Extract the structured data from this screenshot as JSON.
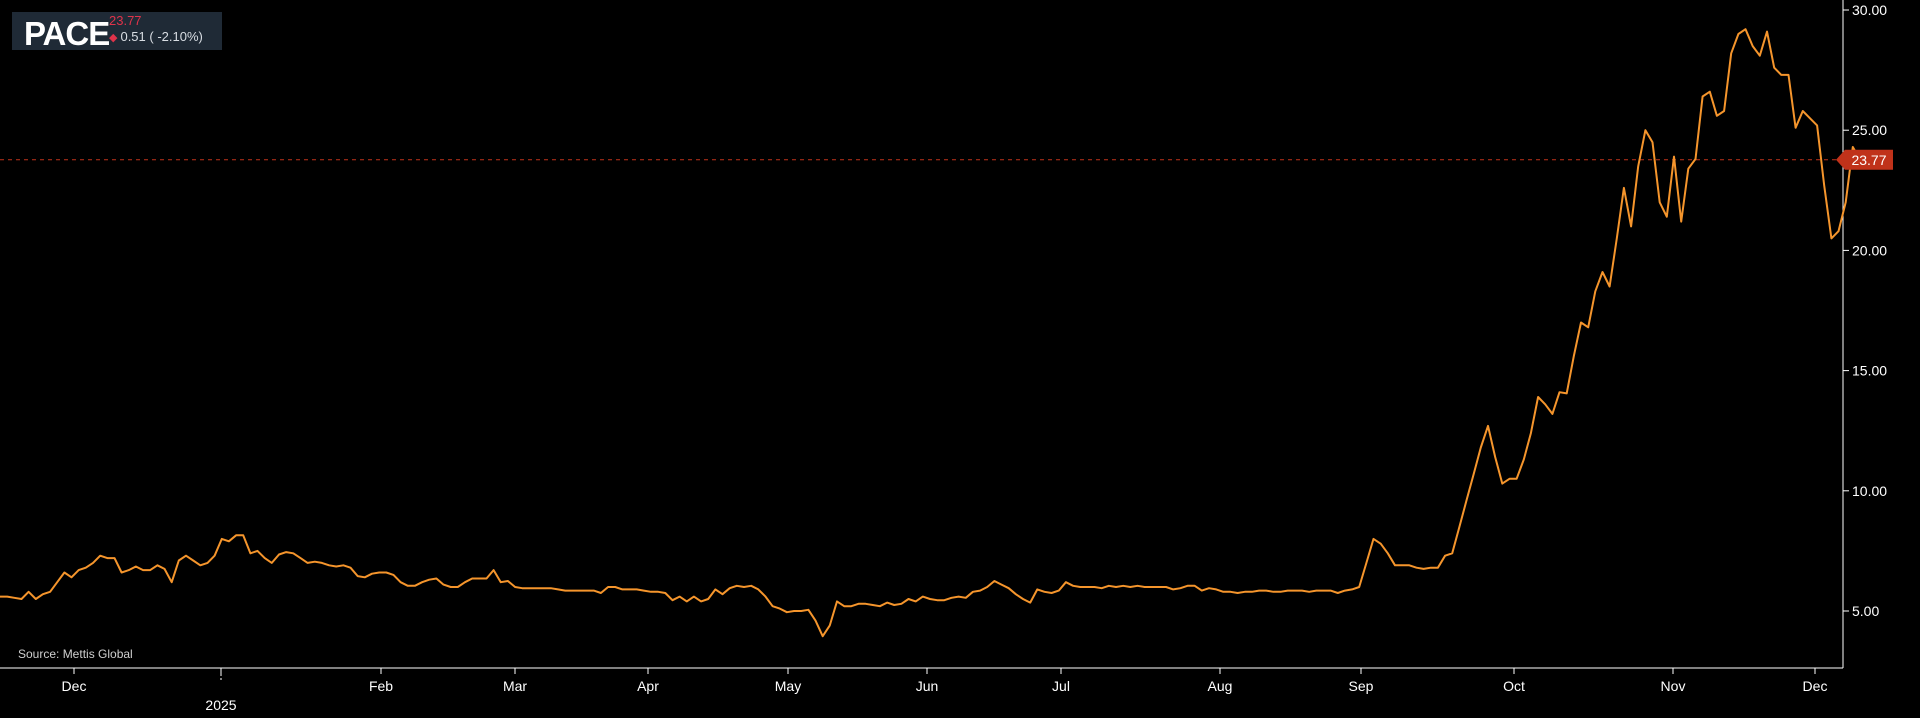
{
  "ticker": {
    "symbol": "PACE",
    "price": "23.77",
    "change": "0.51 ( -2.10%)",
    "direction_icon": "down-diamond-icon"
  },
  "source": "Source: Mettis Global",
  "colors": {
    "background": "#000000",
    "line": "#f5952c",
    "last_price": "#c0321a",
    "axis_text": "#ffffff",
    "price_down": "#e0334a",
    "ticker_box": "#1f2a36"
  },
  "chart_data": {
    "type": "line",
    "title": "",
    "xlabel": "",
    "ylabel": "",
    "x_ticks": [
      "Dec",
      "2025",
      "Feb",
      "Mar",
      "Apr",
      "May",
      "Jun",
      "Jul",
      "Aug",
      "Sep",
      "Oct",
      "Nov",
      "Dec"
    ],
    "y_ticks": [
      "5.00",
      "10.00",
      "15.00",
      "20.00",
      "25.00",
      "30.00"
    ],
    "ylim": [
      2.4,
      30.2
    ],
    "y_axis_side": "right",
    "grid": false,
    "last_price_label": "23.77",
    "last_price": 23.77,
    "series": [
      {
        "values": [
          5.6,
          5.6,
          5.55,
          5.5,
          5.8,
          5.5,
          5.7,
          5.8,
          6.2,
          6.6,
          6.4,
          6.7,
          6.8,
          7.0,
          7.3,
          7.2,
          7.2,
          6.6,
          6.7,
          6.85,
          6.7,
          6.7,
          6.9,
          6.75,
          6.2,
          7.1,
          7.3,
          7.1,
          6.9,
          7.0,
          7.3,
          8.0,
          7.9,
          8.15,
          8.15,
          7.4,
          7.5,
          7.2,
          7.0,
          7.35,
          7.45,
          7.4,
          7.2,
          7.0,
          7.05,
          7.0,
          6.9,
          6.85,
          6.9,
          6.8,
          6.45,
          6.4,
          6.55,
          6.6,
          6.6,
          6.5,
          6.2,
          6.05,
          6.05,
          6.2,
          6.3,
          6.35,
          6.1,
          6.0,
          6.0,
          6.2,
          6.35,
          6.35,
          6.35,
          6.7,
          6.2,
          6.25,
          6.0,
          5.95,
          5.95,
          5.95,
          5.95,
          5.95,
          5.9,
          5.85,
          5.85,
          5.85,
          5.85,
          5.85,
          5.75,
          6.0,
          6.0,
          5.9,
          5.9,
          5.9,
          5.85,
          5.8,
          5.8,
          5.75,
          5.45,
          5.6,
          5.4,
          5.6,
          5.4,
          5.5,
          5.9,
          5.7,
          5.95,
          6.05,
          6.0,
          6.05,
          5.9,
          5.6,
          5.2,
          5.1,
          4.95,
          5.0,
          5.0,
          5.05,
          4.6,
          3.95,
          4.4,
          5.4,
          5.2,
          5.2,
          5.3,
          5.3,
          5.25,
          5.2,
          5.35,
          5.25,
          5.3,
          5.5,
          5.4,
          5.6,
          5.5,
          5.45,
          5.45,
          5.55,
          5.6,
          5.55,
          5.8,
          5.85,
          6.0,
          6.25,
          6.1,
          5.95,
          5.7,
          5.5,
          5.35,
          5.9,
          5.8,
          5.75,
          5.85,
          6.2,
          6.05,
          6.0,
          6.0,
          6.0,
          5.95,
          6.05,
          6.0,
          6.05,
          6.0,
          6.05,
          6.0,
          6.0,
          6.0,
          6.0,
          5.9,
          5.95,
          6.05,
          6.05,
          5.85,
          5.95,
          5.9,
          5.8,
          5.8,
          5.75,
          5.8,
          5.8,
          5.85,
          5.85,
          5.8,
          5.8,
          5.85,
          5.85,
          5.85,
          5.8,
          5.85,
          5.85,
          5.85,
          5.75,
          5.85,
          5.9,
          6.0,
          7.0,
          8.0,
          7.8,
          7.4,
          6.9,
          6.9,
          6.9,
          6.8,
          6.75,
          6.8,
          6.8,
          7.3,
          7.4,
          8.5,
          9.6,
          10.7,
          11.8,
          12.7,
          11.4,
          10.3,
          10.5,
          10.5,
          11.3,
          12.4,
          13.9,
          13.6,
          13.2,
          14.1,
          14.05,
          15.6,
          17.0,
          16.8,
          18.3,
          19.1,
          18.5,
          20.5,
          22.6,
          21.0,
          23.5,
          25.0,
          24.5,
          22.0,
          21.4,
          23.9,
          21.2,
          23.4,
          23.8,
          26.4,
          26.6,
          25.6,
          25.8,
          28.2,
          29.0,
          29.2,
          28.5,
          28.1,
          29.1,
          27.6,
          27.3,
          27.3,
          25.1,
          25.8,
          25.5,
          25.2,
          22.7,
          20.5,
          20.8,
          22.0,
          24.3,
          23.77
        ]
      }
    ]
  }
}
